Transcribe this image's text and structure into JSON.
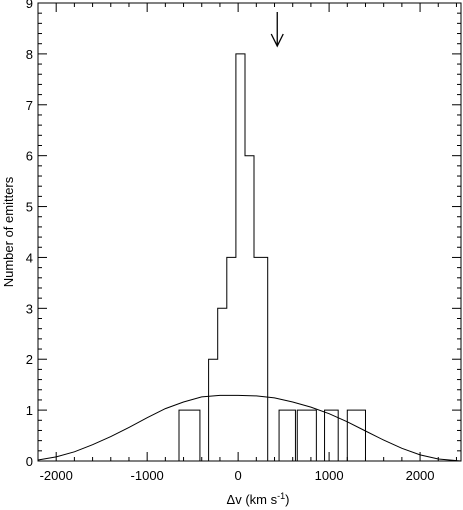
{
  "chart_data": {
    "type": "histogram",
    "xlabel_main": "Δv (km s",
    "xlabel_sup": "-1",
    "xlabel_close": ")",
    "ylabel": "Number of emitters",
    "xlim": [
      -2200,
      2450
    ],
    "ylim": [
      0,
      9
    ],
    "x_ticks": [
      -2000,
      -1000,
      0,
      1000,
      2000
    ],
    "x_tick_labels": [
      "-2000",
      "-1000",
      "0",
      "1000",
      "2000"
    ],
    "y_ticks": [
      0,
      1,
      2,
      3,
      4,
      5,
      6,
      7,
      8,
      9
    ],
    "y_tick_labels": [
      "0",
      "1",
      "2",
      "3",
      "4",
      "5",
      "6",
      "7",
      "8",
      "9"
    ],
    "histogram_main": {
      "bin_edges": [
        -325,
        -225,
        -125,
        -25,
        75,
        175,
        325
      ],
      "counts": [
        2,
        3,
        4,
        8,
        6,
        4
      ]
    },
    "histogram_secondary": [
      {
        "x0": -650,
        "x1": -420,
        "count": 1
      },
      {
        "x0": 450,
        "x1": 630,
        "count": 1
      },
      {
        "x0": 650,
        "x1": 860,
        "count": 1
      },
      {
        "x0": 950,
        "x1": 1100,
        "count": 1
      },
      {
        "x0": 1200,
        "x1": 1400,
        "count": 1
      }
    ],
    "gaussian_curve": {
      "x": [
        -2200,
        -2000,
        -1800,
        -1600,
        -1400,
        -1200,
        -1000,
        -800,
        -600,
        -400,
        -200,
        0,
        200,
        400,
        600,
        800,
        1000,
        1200,
        1400,
        1600,
        1800,
        2000,
        2200,
        2450
      ],
      "y": [
        0.02,
        0.08,
        0.18,
        0.32,
        0.48,
        0.66,
        0.85,
        1.03,
        1.16,
        1.26,
        1.29,
        1.29,
        1.28,
        1.24,
        1.16,
        1.06,
        0.93,
        0.77,
        0.59,
        0.41,
        0.25,
        0.12,
        0.04,
        0.0
      ]
    },
    "arrow_x": 430,
    "grid": false,
    "legend": "none"
  }
}
